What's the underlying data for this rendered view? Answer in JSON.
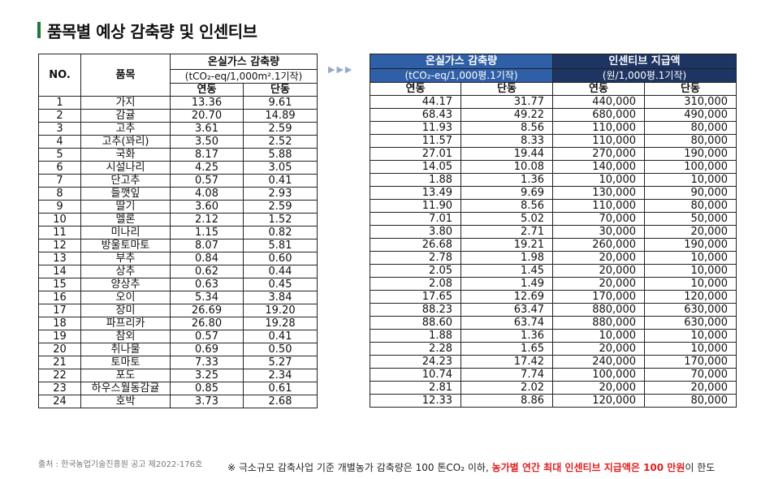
{
  "page_title": "품목별 예상 감축량 및 인센티브",
  "left_table": {
    "header_no": "NO.",
    "header_item": "품목",
    "header_group": "온실가스 감축량",
    "header_unit": "(tCO₂-eq/1,000m².1기작)",
    "header_sub1": "연동",
    "header_sub2": "단동"
  },
  "right_table": {
    "group1": "온실가스 감축량",
    "group1_unit": "(tCO₂-eq/1,000평.1기작)",
    "group2": "인센티브 지급액",
    "group2_unit": "(원/1,000평.1기작)",
    "sub1": "연동",
    "sub2": "단동",
    "sub3": "연동",
    "sub4": "단동"
  },
  "arrows": "▶▶▶",
  "rows": [
    {
      "no": "1",
      "item": "가지",
      "l1": "13.36",
      "l2": "9.61",
      "r1": "44.17",
      "r2": "31.77",
      "r3": "440,000",
      "r4": "310,000"
    },
    {
      "no": "2",
      "item": "감귤",
      "l1": "20.70",
      "l2": "14.89",
      "r1": "68.43",
      "r2": "49.22",
      "r3": "680,000",
      "r4": "490,000"
    },
    {
      "no": "3",
      "item": "고추",
      "l1": "3.61",
      "l2": "2.59",
      "r1": "11.93",
      "r2": "8.56",
      "r3": "110,000",
      "r4": "80,000"
    },
    {
      "no": "4",
      "item": "고추(꽈리)",
      "l1": "3.50",
      "l2": "2.52",
      "r1": "11.57",
      "r2": "8.33",
      "r3": "110,000",
      "r4": "80,000"
    },
    {
      "no": "5",
      "item": "국화",
      "l1": "8.17",
      "l2": "5.88",
      "r1": "27.01",
      "r2": "19.44",
      "r3": "270,000",
      "r4": "190,000"
    },
    {
      "no": "6",
      "item": "시설나리",
      "l1": "4.25",
      "l2": "3.05",
      "r1": "14.05",
      "r2": "10.08",
      "r3": "140,000",
      "r4": "100,000"
    },
    {
      "no": "7",
      "item": "단고추",
      "l1": "0.57",
      "l2": "0.41",
      "r1": "1.88",
      "r2": "1.36",
      "r3": "10,000",
      "r4": "10,000"
    },
    {
      "no": "8",
      "item": "들깻잎",
      "l1": "4.08",
      "l2": "2.93",
      "r1": "13.49",
      "r2": "9.69",
      "r3": "130,000",
      "r4": "90,000"
    },
    {
      "no": "9",
      "item": "딸기",
      "l1": "3.60",
      "l2": "2.59",
      "r1": "11.90",
      "r2": "8.56",
      "r3": "110,000",
      "r4": "80,000"
    },
    {
      "no": "10",
      "item": "멜론",
      "l1": "2.12",
      "l2": "1.52",
      "r1": "7.01",
      "r2": "5.02",
      "r3": "70,000",
      "r4": "50,000"
    },
    {
      "no": "11",
      "item": "미나리",
      "l1": "1.15",
      "l2": "0.82",
      "r1": "3.80",
      "r2": "2.71",
      "r3": "30,000",
      "r4": "20,000"
    },
    {
      "no": "12",
      "item": "방울토마토",
      "l1": "8.07",
      "l2": "5.81",
      "r1": "26.68",
      "r2": "19.21",
      "r3": "260,000",
      "r4": "190,000"
    },
    {
      "no": "13",
      "item": "부추",
      "l1": "0.84",
      "l2": "0.60",
      "r1": "2.78",
      "r2": "1.98",
      "r3": "20,000",
      "r4": "10,000"
    },
    {
      "no": "14",
      "item": "상추",
      "l1": "0.62",
      "l2": "0.44",
      "r1": "2.05",
      "r2": "1.45",
      "r3": "20,000",
      "r4": "10,000"
    },
    {
      "no": "15",
      "item": "양상추",
      "l1": "0.63",
      "l2": "0.45",
      "r1": "2.08",
      "r2": "1.49",
      "r3": "20,000",
      "r4": "10,000"
    },
    {
      "no": "16",
      "item": "오이",
      "l1": "5.34",
      "l2": "3.84",
      "r1": "17.65",
      "r2": "12.69",
      "r3": "170,000",
      "r4": "120,000"
    },
    {
      "no": "17",
      "item": "장미",
      "l1": "26.69",
      "l2": "19.20",
      "r1": "88.23",
      "r2": "63.47",
      "r3": "880,000",
      "r4": "630,000"
    },
    {
      "no": "18",
      "item": "파프리카",
      "l1": "26.80",
      "l2": "19.28",
      "r1": "88.60",
      "r2": "63.74",
      "r3": "880,000",
      "r4": "630,000"
    },
    {
      "no": "19",
      "item": "참외",
      "l1": "0.57",
      "l2": "0.41",
      "r1": "1.88",
      "r2": "1.36",
      "r3": "10,000",
      "r4": "10,000"
    },
    {
      "no": "20",
      "item": "취나물",
      "l1": "0.69",
      "l2": "0.50",
      "r1": "2.28",
      "r2": "1.65",
      "r3": "20,000",
      "r4": "10,000"
    },
    {
      "no": "21",
      "item": "토마토",
      "l1": "7.33",
      "l2": "5.27",
      "r1": "24.23",
      "r2": "17.42",
      "r3": "240,000",
      "r4": "170,000"
    },
    {
      "no": "22",
      "item": "포도",
      "l1": "3.25",
      "l2": "2.34",
      "r1": "10.74",
      "r2": "7.74",
      "r3": "100,000",
      "r4": "70,000"
    },
    {
      "no": "23",
      "item": "하우스월동감귤",
      "l1": "0.85",
      "l2": "0.61",
      "r1": "2.81",
      "r2": "2.02",
      "r3": "20,000",
      "r4": "20,000"
    },
    {
      "no": "24",
      "item": "호박",
      "l1": "3.73",
      "l2": "2.68",
      "r1": "12.33",
      "r2": "8.86",
      "r3": "120,000",
      "r4": "80,000"
    }
  ],
  "source": "출처 : 한국농업기술진흥원 공고 제2022-176호",
  "note_prefix": "※ 극소규모 감축사업 기준 개별농가 감축량은 100 톤CO₂ 이하,",
  "note_emphasis": "농가별 연간 최대 인센티브 지급액은 100 만원",
  "note_suffix": "이 한도",
  "colors": {
    "title_bar": "#1f7a3e",
    "header_blue": "#2f5fa6",
    "header_navy": "#1e3563",
    "emphasis": "#e02020"
  }
}
